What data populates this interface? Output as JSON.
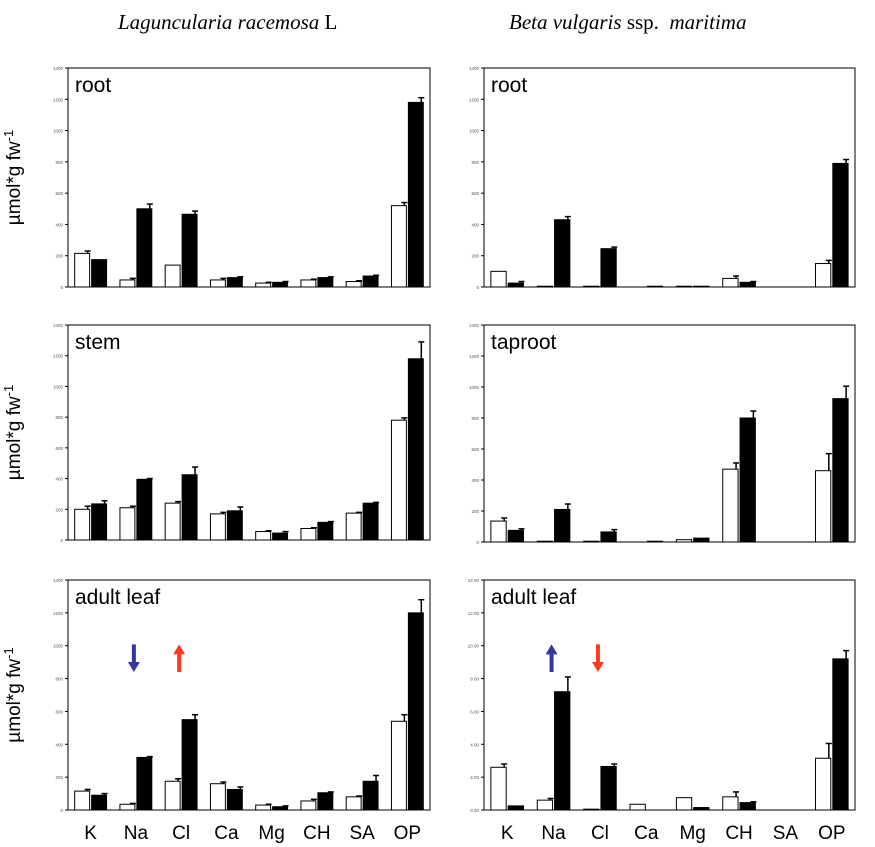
{
  "columns": [
    {
      "title_italic": "Laguncularia racemosa",
      "title_plain": " L"
    },
    {
      "title_italic": "Beta vulgaris",
      "title_mid": " ssp.  ",
      "title_italic2": "maritima"
    }
  ],
  "colors": {
    "control": "#ffffff",
    "salt": "#000000",
    "increase_arrow": "#ff3b1f",
    "decrease_arrow": "#3535a0"
  },
  "chart_data": [
    {
      "type": "bar",
      "panel_label": "root",
      "ylabel": "µmol*g fw-1",
      "categories": [
        "K",
        "Na",
        "Cl",
        "Ca",
        "Mg",
        "CH",
        "SA",
        "OP"
      ],
      "ylim": [
        0,
        1400
      ],
      "yticks": [
        "0",
        "200",
        "400",
        "600",
        "800",
        "1000",
        "1200",
        "1400"
      ],
      "show_xticks": false,
      "series": [
        {
          "values": [
            215,
            45,
            140,
            45,
            25,
            45,
            35,
            520
          ]
        },
        {
          "values": [
            175,
            500,
            465,
            60,
            30,
            60,
            70,
            1180
          ]
        }
      ],
      "errors": [
        [
          15,
          10,
          0,
          10,
          5,
          5,
          5,
          20
        ],
        [
          0,
          30,
          20,
          5,
          5,
          5,
          5,
          30
        ]
      ]
    },
    {
      "type": "bar",
      "panel_label": "root",
      "ylabel": "",
      "categories": [
        "K",
        "Na",
        "Cl",
        "Ca",
        "Mg",
        "CH",
        "SA",
        "OP"
      ],
      "ylim": [
        0,
        1400
      ],
      "yticks": [
        "0",
        "200",
        "400",
        "600",
        "800",
        "1000",
        "1200",
        "1400"
      ],
      "show_xticks": false,
      "series": [
        {
          "values": [
            100,
            5,
            5,
            0,
            5,
            55,
            0,
            150
          ]
        },
        {
          "values": [
            25,
            430,
            245,
            5,
            5,
            30,
            0,
            790
          ]
        }
      ],
      "errors": [
        [
          0,
          0,
          0,
          0,
          0,
          15,
          0,
          20
        ],
        [
          10,
          20,
          10,
          0,
          0,
          5,
          0,
          25
        ]
      ]
    },
    {
      "type": "bar",
      "panel_label": "stem",
      "ylabel": "µmol*g fw-1",
      "categories": [
        "K",
        "Na",
        "Cl",
        "Ca",
        "Mg",
        "CH",
        "SA",
        "OP"
      ],
      "ylim": [
        0,
        1400
      ],
      "yticks": [
        "0",
        "200",
        "400",
        "600",
        "800",
        "1000",
        "1200",
        "1400"
      ],
      "show_xticks": false,
      "series": [
        {
          "values": [
            200,
            210,
            240,
            170,
            55,
            75,
            175,
            780
          ]
        },
        {
          "values": [
            235,
            395,
            425,
            190,
            45,
            115,
            240,
            1180
          ]
        }
      ],
      "errors": [
        [
          20,
          10,
          10,
          10,
          5,
          5,
          5,
          15
        ],
        [
          20,
          5,
          50,
          25,
          10,
          5,
          5,
          110
        ]
      ]
    },
    {
      "type": "bar",
      "panel_label": "taproot",
      "ylabel": "",
      "categories": [
        "K",
        "Na",
        "Cl",
        "Ca",
        "Mg",
        "CH",
        "SA",
        "OP"
      ],
      "ylim": [
        0,
        1400
      ],
      "yticks": [
        "0",
        "200",
        "400",
        "600",
        "800",
        "1000",
        "1200",
        "1400"
      ],
      "show_xticks": false,
      "series": [
        {
          "values": [
            135,
            5,
            5,
            0,
            15,
            470,
            0,
            460
          ]
        },
        {
          "values": [
            75,
            210,
            65,
            5,
            25,
            800,
            0,
            925
          ]
        }
      ],
      "errors": [
        [
          20,
          0,
          0,
          0,
          0,
          40,
          0,
          110
        ],
        [
          10,
          35,
          15,
          0,
          0,
          45,
          0,
          80
        ]
      ]
    },
    {
      "type": "bar",
      "panel_label": "adult leaf",
      "ylabel": "µmol*g fw-1",
      "categories": [
        "K",
        "Na",
        "Cl",
        "Ca",
        "Mg",
        "CH",
        "SA",
        "OP"
      ],
      "ylim": [
        0,
        1400
      ],
      "yticks": [
        "0",
        "200",
        "400",
        "600",
        "800",
        "1000",
        "1200",
        "1400"
      ],
      "show_xticks": true,
      "series": [
        {
          "values": [
            115,
            35,
            175,
            160,
            30,
            55,
            80,
            540
          ]
        },
        {
          "values": [
            90,
            320,
            550,
            125,
            20,
            105,
            175,
            1200
          ]
        }
      ],
      "errors": [
        [
          10,
          5,
          15,
          10,
          5,
          10,
          5,
          40
        ],
        [
          10,
          5,
          30,
          15,
          5,
          5,
          35,
          80
        ]
      ],
      "arrows": [
        {
          "category": "Na",
          "direction": "down",
          "color": "decrease_arrow"
        },
        {
          "category": "Cl",
          "direction": "up",
          "color": "increase_arrow"
        }
      ]
    },
    {
      "type": "bar",
      "panel_label": "adult leaf",
      "ylabel": "",
      "categories": [
        "K",
        "Na",
        "Cl",
        "Ca",
        "Mg",
        "CH",
        "SA",
        "OP"
      ],
      "ylim": [
        0,
        14
      ],
      "yticks": [
        "0.00",
        "2.00",
        "4.00",
        "6.00",
        "8.00",
        "10.00",
        "12.00",
        "14.00"
      ],
      "show_xticks": true,
      "series": [
        {
          "values": [
            2.6,
            0.6,
            0.05,
            0.35,
            0.75,
            0.8,
            0,
            3.15
          ]
        },
        {
          "values": [
            0.25,
            7.2,
            2.65,
            0,
            0.15,
            0.45,
            0,
            9.2
          ]
        }
      ],
      "errors": [
        [
          0.2,
          0.1,
          0,
          0,
          0,
          0.3,
          0,
          0.9
        ],
        [
          0,
          0.9,
          0.15,
          0,
          0,
          0.05,
          0,
          0.5
        ]
      ],
      "arrows": [
        {
          "category": "Na",
          "direction": "up",
          "color": "decrease_arrow"
        },
        {
          "category": "Cl",
          "direction": "down",
          "color": "increase_arrow"
        }
      ]
    }
  ]
}
